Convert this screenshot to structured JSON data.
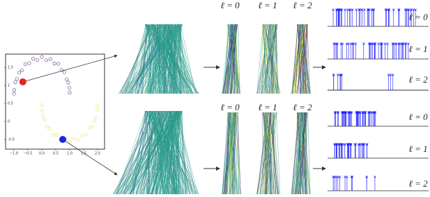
{
  "chart_data": {
    "type": "scatter",
    "xlim": [
      -1.3,
      2.25
    ],
    "ylim": [
      -0.77,
      1.87
    ],
    "xticks": [
      {
        "value": -1,
        "label": "−1.0"
      },
      {
        "value": -0.5,
        "label": "−0.5"
      },
      {
        "value": 0,
        "label": "0.0"
      },
      0.5,
      {
        "value": 1,
        "label": "1.0"
      },
      1.5,
      {
        "value": 2,
        "label": "2.0"
      }
    ],
    "yticks": [
      -0.5,
      0,
      0.5,
      1,
      1.5
    ],
    "series": [
      {
        "color": "#6a3d8f",
        "x": [
          1.0,
          0.99,
          0.95,
          0.89,
          0.81,
          0.71,
          0.59,
          0.45,
          0.31,
          0.16,
          0.0,
          -0.16,
          -0.31,
          -0.45,
          -0.59,
          -0.71,
          -0.81,
          -0.89,
          -0.95,
          -0.99,
          -1.0
        ],
        "values": [
          0.8,
          0.93,
          1.08,
          1.17,
          1.37,
          1.43,
          1.6,
          1.61,
          1.73,
          1.7,
          1.79,
          1.71,
          1.74,
          1.62,
          1.59,
          1.42,
          1.36,
          1.18,
          1.09,
          0.87,
          0.77
        ]
      },
      {
        "color": "#e8e070",
        "x": [
          0.0,
          0.01,
          0.05,
          0.11,
          0.19,
          0.29,
          0.41,
          0.55,
          0.69,
          0.84,
          1.0,
          1.16,
          1.31,
          1.45,
          1.59,
          1.71,
          1.81,
          1.89,
          1.95,
          1.99,
          2.0
        ],
        "values": [
          0.45,
          0.3,
          0.14,
          0.05,
          -0.15,
          -0.2,
          -0.38,
          -0.37,
          -0.5,
          -0.48,
          -0.56,
          -0.47,
          -0.52,
          -0.4,
          -0.36,
          -0.18,
          -0.14,
          0.02,
          0.12,
          0.33,
          0.44
        ]
      }
    ],
    "highlights": [
      {
        "x": -0.68,
        "y": 1.1,
        "color": "#e8241c"
      },
      {
        "x": 0.75,
        "y": -0.5,
        "color": "#1a24e0"
      }
    ]
  },
  "diagram": {
    "top_columns": [
      "ℓ = 0",
      "ℓ = 1",
      "ℓ = 2"
    ],
    "bottom_columns": [
      "ℓ = 0",
      "ℓ = 1",
      "ℓ = 2"
    ],
    "top_right": [
      "ℓ = 0",
      "ℓ = 1",
      "ℓ = 2"
    ],
    "bottom_right": [
      "ℓ = 0",
      "ℓ = 1",
      "ℓ = 2"
    ]
  }
}
